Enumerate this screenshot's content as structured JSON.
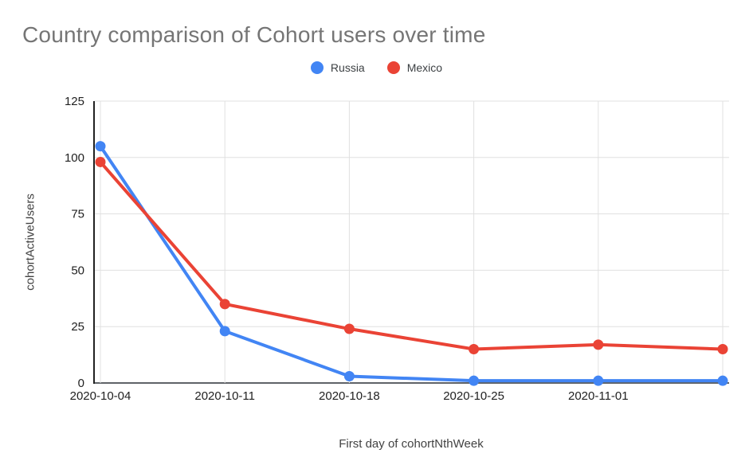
{
  "header": {
    "title": "Country comparison of Cohort users over time",
    "title_color": "#757575"
  },
  "chart_data": {
    "type": "line",
    "title": "Country comparison of Cohort users over time",
    "xlabel": "First day of cohortNthWeek",
    "ylabel": "cohortActiveUsers",
    "categories": [
      "2020-10-04",
      "2020-10-11",
      "2020-10-18",
      "2020-10-25",
      "2020-11-01",
      ""
    ],
    "series": [
      {
        "name": "Russia",
        "color": "#4285F4",
        "values": [
          105,
          23,
          3,
          1,
          1,
          1
        ]
      },
      {
        "name": "Mexico",
        "color": "#EA4335",
        "values": [
          98,
          35,
          24,
          15,
          17,
          15
        ]
      }
    ],
    "ylim": [
      0,
      125
    ],
    "yticks": [
      0,
      25,
      50,
      75,
      100,
      125
    ],
    "grid": true,
    "legend_position": "top",
    "colors": {
      "gridline": "#e0e0e0",
      "baseline": "#5f6368",
      "y_axis_line": "#212121",
      "tick_label": "#212121",
      "axis_title": "#424242"
    }
  }
}
